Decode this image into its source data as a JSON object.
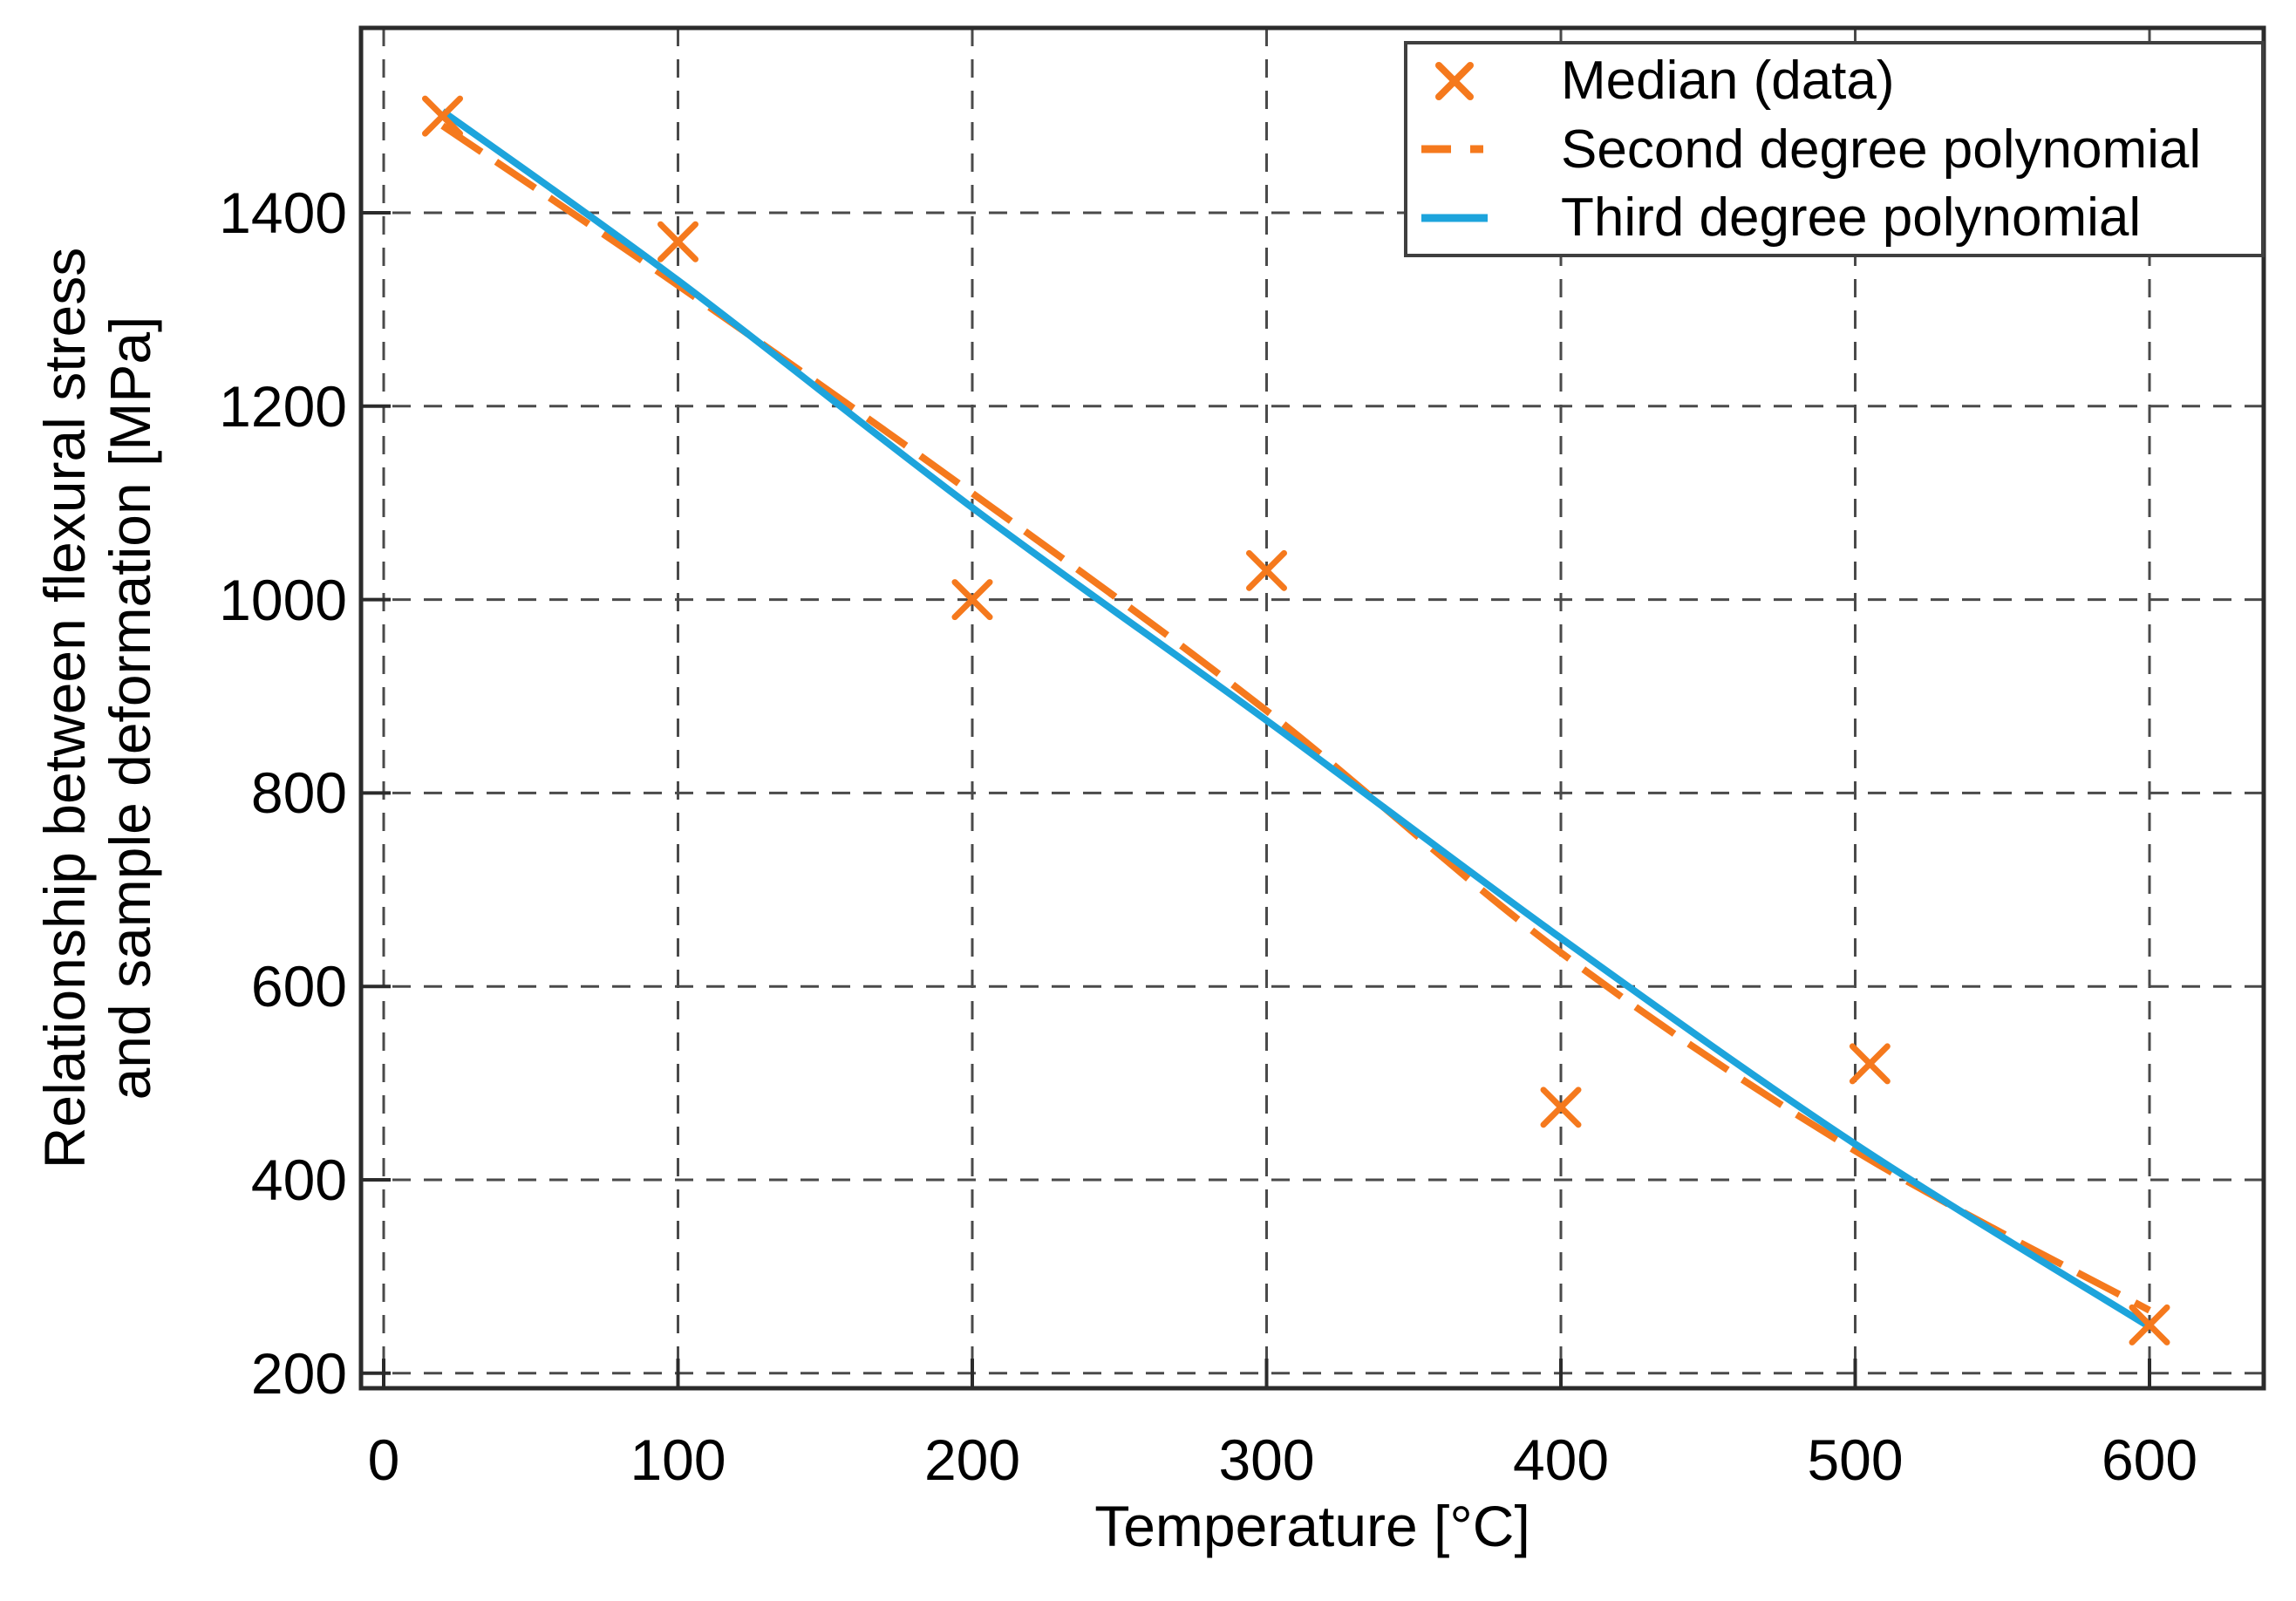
{
  "chart_data": {
    "type": "scatter",
    "title": "",
    "xlabel": "Temperature [°C]",
    "ylabel_lines": [
      "Relationship between flexural stress",
      "and sample deformation [MPa]"
    ],
    "xticks": [
      "0",
      "100",
      "200",
      "300",
      "400",
      "500",
      "600"
    ],
    "xtick_values": [
      0,
      100,
      200,
      300,
      400,
      500,
      600
    ],
    "yticks": [
      "200",
      "400",
      "600",
      "800",
      "1000",
      "1200",
      "1400"
    ],
    "ytick_values": [
      200,
      400,
      600,
      800,
      1000,
      1200,
      1400
    ],
    "xlim": [
      -8,
      639
    ],
    "ylim": [
      185,
      1591
    ],
    "grid": true,
    "grid_style": "dashed",
    "legend_position": "upper right",
    "series": [
      {
        "name": "Median (data)",
        "type": "scatter",
        "marker": "x",
        "color": "#f5791d",
        "points": [
          [
            20,
            1500
          ],
          [
            100,
            1370
          ],
          [
            200,
            1000
          ],
          [
            300,
            1030
          ],
          [
            400,
            475
          ],
          [
            505,
            520
          ],
          [
            600,
            250
          ]
        ]
      },
      {
        "name": "Second degree polynomial",
        "type": "line",
        "dash": "dashed",
        "color": "#f5791d",
        "points": [
          [
            20,
            1490
          ],
          [
            100,
            1325
          ],
          [
            200,
            1110
          ],
          [
            300,
            885
          ],
          [
            400,
            635
          ],
          [
            500,
            430
          ],
          [
            600,
            265
          ]
        ]
      },
      {
        "name": "Third degree polynomial",
        "type": "line",
        "dash": "solid",
        "color": "#1da4dc",
        "points": [
          [
            20,
            1505
          ],
          [
            100,
            1330
          ],
          [
            200,
            1095
          ],
          [
            300,
            875
          ],
          [
            400,
            650
          ],
          [
            500,
            437
          ],
          [
            600,
            248
          ]
        ]
      }
    ],
    "colors": {
      "grid": "#4a4a4a",
      "axis": "#2b2b2b",
      "text": "#000000",
      "background": "#ffffff"
    }
  }
}
